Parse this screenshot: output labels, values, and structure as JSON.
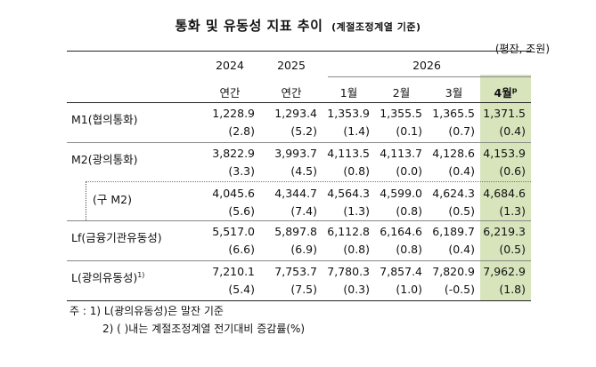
{
  "title": {
    "main": "통화 및 유동성 지표 추이",
    "sub": "(계절조정계열 기준)"
  },
  "unit": "(평잔, 조원)",
  "years": [
    "2024",
    "2025",
    "2026"
  ],
  "periods": [
    "연간",
    "연간",
    "1월",
    "2월",
    "3월",
    "4월"
  ],
  "period_last_sup": "p",
  "rows": [
    {
      "label": "M1(협의통화)",
      "values": [
        "1,228.9",
        "1,293.4",
        "1,353.9",
        "1,355.5",
        "1,365.5",
        "1,371.5"
      ],
      "changes": [
        "(2.8)",
        "(5.2)",
        "(1.4)",
        "(0.1)",
        "(0.7)",
        "(0.4)"
      ]
    },
    {
      "label": "M2(광의통화)",
      "values": [
        "3,822.9",
        "3,993.7",
        "4,113.5",
        "4,113.7",
        "4,128.6",
        "4,153.9"
      ],
      "changes": [
        "(3.3)",
        "(4.5)",
        "(0.8)",
        "(0.0)",
        "(0.4)",
        "(0.6)"
      ]
    },
    {
      "label": "(구 M2)",
      "values": [
        "4,045.6",
        "4,344.7",
        "4,564.3",
        "4,599.0",
        "4,624.3",
        "4,684.6"
      ],
      "changes": [
        "(5.6)",
        "(7.4)",
        "(1.3)",
        "(0.8)",
        "(0.5)",
        "(1.3)"
      ]
    },
    {
      "label": "Lf(금융기관유동성)",
      "values": [
        "5,517.0",
        "5,897.8",
        "6,112.8",
        "6,164.6",
        "6,189.7",
        "6,219.3"
      ],
      "changes": [
        "(6.6)",
        "(6.9)",
        "(0.8)",
        "(0.8)",
        "(0.4)",
        "(0.5)"
      ]
    },
    {
      "label": "L(광의유동성)",
      "label_sup": "1)",
      "values": [
        "7,210.1",
        "7,753.7",
        "7,780.3",
        "7,857.4",
        "7,820.9",
        "7,962.9"
      ],
      "changes": [
        "(5.4)",
        "(7.5)",
        "(0.3)",
        "(1.0)",
        "(-0.5)",
        "(1.8)"
      ]
    }
  ],
  "notes": {
    "line1": "주 : 1) L(광의유동성)은 말잔 기준",
    "line2": "2) (      )내는 계절조정계열 전기대비 증감률(%)"
  },
  "colors": {
    "highlight": "#d7e4bc"
  }
}
